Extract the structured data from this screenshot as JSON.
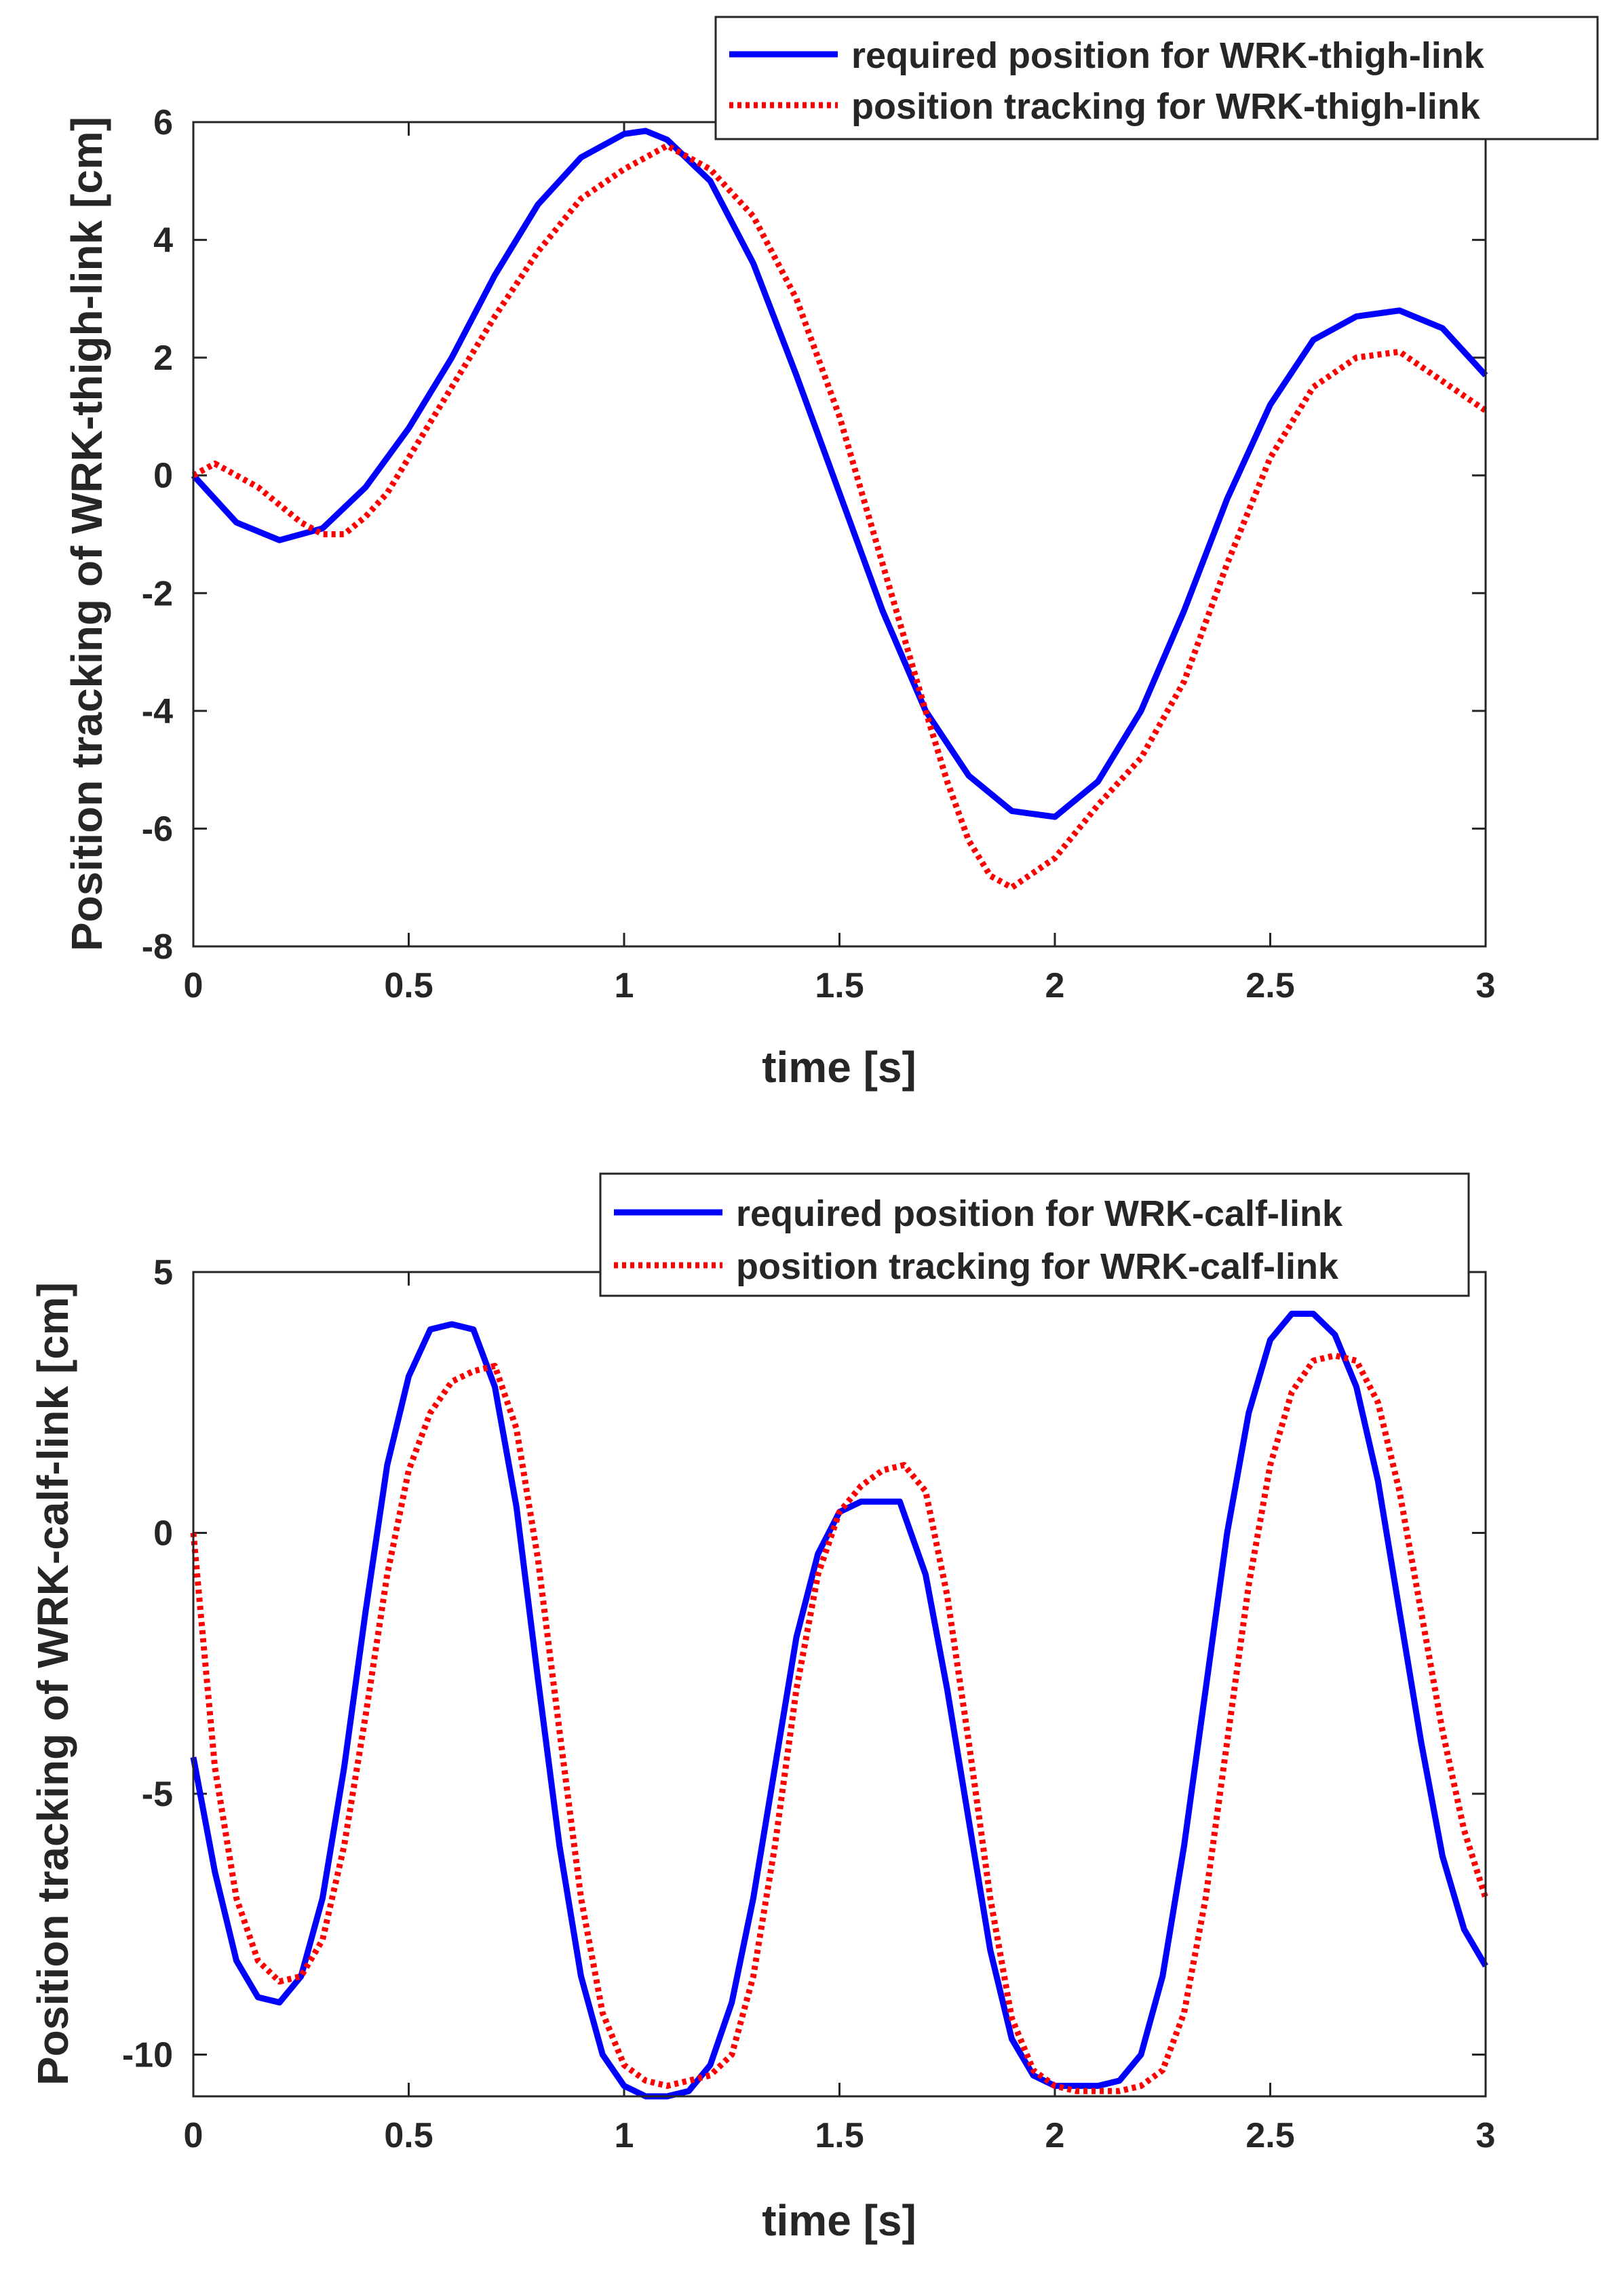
{
  "chart_data": [
    {
      "type": "line",
      "xlabel": "time [s]",
      "ylabel": "Position tracking of WRK-thigh-link [cm]",
      "xlim": [
        0,
        3
      ],
      "ylim": [
        -8,
        6
      ],
      "xticks": [
        0,
        0.5,
        1,
        1.5,
        2,
        2.5,
        3
      ],
      "xtick_labels": [
        "0",
        "0.5",
        "1",
        "1.5",
        "2",
        "2.5",
        "3"
      ],
      "yticks": [
        -8,
        -6,
        -4,
        -2,
        0,
        2,
        4,
        6
      ],
      "ytick_labels": [
        "-8",
        "-6",
        "-4",
        "-2",
        "0",
        "2",
        "4",
        "6"
      ],
      "legend_position": "top-right",
      "series": [
        {
          "name": "required position for WRK-thigh-link",
          "color": "#0000ff",
          "style": "solid",
          "x": [
            0,
            0.1,
            0.2,
            0.3,
            0.4,
            0.5,
            0.6,
            0.7,
            0.8,
            0.9,
            1.0,
            1.05,
            1.1,
            1.2,
            1.3,
            1.4,
            1.5,
            1.6,
            1.7,
            1.8,
            1.9,
            2.0,
            2.1,
            2.2,
            2.3,
            2.4,
            2.5,
            2.6,
            2.7,
            2.8,
            2.9,
            3.0
          ],
          "values": [
            0,
            -0.8,
            -1.1,
            -0.9,
            -0.2,
            0.8,
            2.0,
            3.4,
            4.6,
            5.4,
            5.8,
            5.85,
            5.7,
            5.0,
            3.6,
            1.7,
            -0.3,
            -2.3,
            -4.0,
            -5.1,
            -5.7,
            -5.8,
            -5.2,
            -4.0,
            -2.3,
            -0.4,
            1.2,
            2.3,
            2.7,
            2.8,
            2.5,
            1.7
          ]
        },
        {
          "name": "position tracking for WRK-thigh-link",
          "color": "#ff0000",
          "style": "dotted",
          "x": [
            0,
            0.05,
            0.1,
            0.15,
            0.2,
            0.25,
            0.3,
            0.35,
            0.4,
            0.45,
            0.5,
            0.6,
            0.7,
            0.8,
            0.9,
            1.0,
            1.1,
            1.2,
            1.3,
            1.4,
            1.5,
            1.6,
            1.7,
            1.75,
            1.8,
            1.85,
            1.9,
            2.0,
            2.1,
            2.2,
            2.3,
            2.4,
            2.5,
            2.6,
            2.7,
            2.8,
            2.9,
            3.0
          ],
          "values": [
            0,
            0.2,
            0.0,
            -0.2,
            -0.5,
            -0.8,
            -1.0,
            -1.0,
            -0.7,
            -0.3,
            0.3,
            1.5,
            2.7,
            3.8,
            4.7,
            5.2,
            5.6,
            5.2,
            4.4,
            3.0,
            1.0,
            -1.5,
            -4.0,
            -5.2,
            -6.2,
            -6.8,
            -7.0,
            -6.5,
            -5.6,
            -4.8,
            -3.5,
            -1.5,
            0.3,
            1.5,
            2.0,
            2.1,
            1.6,
            1.1
          ]
        }
      ]
    },
    {
      "type": "line",
      "xlabel": "time [s]",
      "ylabel": "Position tracking of WRK-calf-link [cm]",
      "xlim": [
        0,
        3
      ],
      "ylim": [
        -10.8,
        5
      ],
      "xticks": [
        0,
        0.5,
        1,
        1.5,
        2,
        2.5,
        3
      ],
      "xtick_labels": [
        "0",
        "0.5",
        "1",
        "1.5",
        "2",
        "2.5",
        "3"
      ],
      "yticks": [
        -10,
        -5,
        0,
        5
      ],
      "ytick_labels": [
        "-10",
        "-5",
        "0",
        "5"
      ],
      "legend_position": "top-right",
      "series": [
        {
          "name": "required position for WRK-calf-link",
          "color": "#0000ff",
          "style": "solid",
          "x": [
            0,
            0.05,
            0.1,
            0.15,
            0.2,
            0.25,
            0.3,
            0.35,
            0.4,
            0.45,
            0.5,
            0.55,
            0.6,
            0.65,
            0.7,
            0.75,
            0.8,
            0.85,
            0.9,
            0.95,
            1.0,
            1.05,
            1.1,
            1.15,
            1.2,
            1.25,
            1.3,
            1.35,
            1.4,
            1.45,
            1.5,
            1.55,
            1.6,
            1.64,
            1.7,
            1.75,
            1.8,
            1.85,
            1.9,
            1.95,
            2.0,
            2.05,
            2.1,
            2.15,
            2.2,
            2.25,
            2.3,
            2.35,
            2.4,
            2.45,
            2.5,
            2.55,
            2.6,
            2.65,
            2.7,
            2.75,
            2.8,
            2.85,
            2.9,
            2.95,
            3.0
          ],
          "values": [
            -4.3,
            -6.5,
            -8.2,
            -8.9,
            -9.0,
            -8.5,
            -7.0,
            -4.5,
            -1.5,
            1.3,
            3.0,
            3.9,
            4.0,
            3.9,
            2.8,
            0.5,
            -2.8,
            -6.0,
            -8.5,
            -10.0,
            -10.6,
            -10.8,
            -10.8,
            -10.7,
            -10.2,
            -9.0,
            -7.0,
            -4.5,
            -2.0,
            -0.4,
            0.4,
            0.6,
            0.6,
            0.6,
            -0.8,
            -3.0,
            -5.5,
            -8.0,
            -9.7,
            -10.4,
            -10.6,
            -10.6,
            -10.6,
            -10.5,
            -10.0,
            -8.5,
            -6.0,
            -3.0,
            0.0,
            2.3,
            3.7,
            4.2,
            4.2,
            3.8,
            2.8,
            1.0,
            -1.5,
            -4.0,
            -6.2,
            -7.6,
            -8.3
          ]
        },
        {
          "name": "position tracking for WRK-calf-link",
          "color": "#ff0000",
          "style": "dotted",
          "x": [
            0,
            0.05,
            0.1,
            0.15,
            0.2,
            0.25,
            0.3,
            0.35,
            0.4,
            0.45,
            0.5,
            0.55,
            0.6,
            0.65,
            0.7,
            0.75,
            0.8,
            0.85,
            0.9,
            0.95,
            1.0,
            1.05,
            1.1,
            1.15,
            1.2,
            1.25,
            1.3,
            1.35,
            1.4,
            1.45,
            1.5,
            1.55,
            1.6,
            1.65,
            1.7,
            1.75,
            1.8,
            1.85,
            1.9,
            1.95,
            2.0,
            2.05,
            2.1,
            2.15,
            2.2,
            2.25,
            2.3,
            2.35,
            2.4,
            2.45,
            2.5,
            2.55,
            2.6,
            2.65,
            2.7,
            2.75,
            2.8,
            2.85,
            2.9,
            2.95,
            3.0
          ],
          "values": [
            0,
            -4.5,
            -7.0,
            -8.2,
            -8.6,
            -8.5,
            -7.8,
            -6.0,
            -3.5,
            -0.8,
            1.2,
            2.3,
            2.9,
            3.1,
            3.2,
            2.0,
            -0.5,
            -3.8,
            -7.0,
            -9.2,
            -10.2,
            -10.5,
            -10.6,
            -10.5,
            -10.4,
            -10.0,
            -8.5,
            -6.0,
            -3.0,
            -0.8,
            0.4,
            0.9,
            1.2,
            1.3,
            0.8,
            -1.2,
            -4.0,
            -7.0,
            -9.3,
            -10.3,
            -10.6,
            -10.7,
            -10.7,
            -10.7,
            -10.6,
            -10.3,
            -9.2,
            -7.0,
            -4.0,
            -1.0,
            1.3,
            2.7,
            3.3,
            3.4,
            3.3,
            2.5,
            0.8,
            -1.5,
            -3.8,
            -5.7,
            -7.0
          ]
        }
      ]
    }
  ]
}
